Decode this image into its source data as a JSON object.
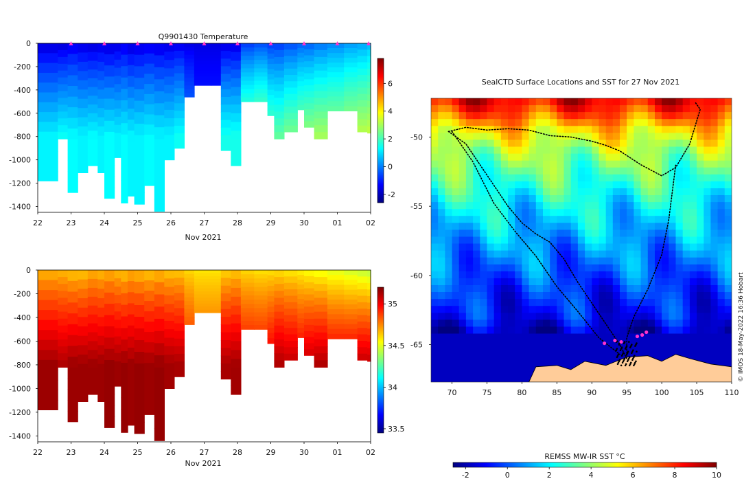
{
  "colors": {
    "jet": [
      "#00007f",
      "#0000ff",
      "#007fff",
      "#00ffff",
      "#7fff7f",
      "#ffff00",
      "#ff7f00",
      "#ff0000",
      "#7f0000"
    ],
    "land": "#ffcc99",
    "marker": "#ff33cc",
    "track": "#000000"
  },
  "chart_data": [
    {
      "id": "temperature",
      "type": "heatmap",
      "title": "Q9901430  Temperature",
      "xlabel": "Nov 2021",
      "ylabel": "",
      "x_ticks": [
        "22",
        "23",
        "24",
        "25",
        "26",
        "27",
        "28",
        "29",
        "30",
        "01",
        "02"
      ],
      "x_tick_values": [
        22,
        23,
        24,
        25,
        26,
        27,
        28,
        29,
        30,
        31,
        32
      ],
      "xlim": [
        22,
        32
      ],
      "y_ticks": [
        "0",
        "-200",
        "-400",
        "-600",
        "-800",
        "-1000",
        "-1200",
        "-1400"
      ],
      "y_tick_values": [
        0,
        -200,
        -400,
        -600,
        -800,
        -1000,
        -1200,
        -1400
      ],
      "ylim": [
        -1450,
        0
      ],
      "colorbar_ticks": [
        "6",
        "4",
        "2",
        "0",
        "-2"
      ],
      "colorbar_tick_values": [
        6,
        4,
        2,
        0,
        -2
      ],
      "clim": [
        -2.6,
        7.8
      ],
      "surface_markers_days": [
        23,
        24,
        25,
        26,
        27,
        28,
        29,
        30,
        31,
        32
      ],
      "profiles": [
        {
          "day": 22.0,
          "depth": 1180,
          "shallow": -1.8,
          "deep": 1.2
        },
        {
          "day": 22.6,
          "depth": 820,
          "shallow": -1.8,
          "deep": 1.4
        },
        {
          "day": 22.9,
          "depth": 1280,
          "shallow": -1.6,
          "deep": 1.3
        },
        {
          "day": 23.2,
          "depth": 1110,
          "shallow": -1.7,
          "deep": 1.2
        },
        {
          "day": 23.5,
          "depth": 1050,
          "shallow": -1.8,
          "deep": 1.3
        },
        {
          "day": 23.8,
          "depth": 1110,
          "shallow": -1.7,
          "deep": 1.2
        },
        {
          "day": 24.0,
          "depth": 1330,
          "shallow": -1.8,
          "deep": 1.3
        },
        {
          "day": 24.3,
          "depth": 980,
          "shallow": -1.7,
          "deep": 1.2
        },
        {
          "day": 24.5,
          "depth": 1370,
          "shallow": -1.6,
          "deep": 1.3
        },
        {
          "day": 24.7,
          "depth": 1310,
          "shallow": -1.8,
          "deep": 1.2
        },
        {
          "day": 24.9,
          "depth": 1380,
          "shallow": -1.7,
          "deep": 1.2
        },
        {
          "day": 25.2,
          "depth": 1220,
          "shallow": -1.6,
          "deep": 1.3
        },
        {
          "day": 25.5,
          "depth": 1440,
          "shallow": -1.7,
          "deep": 1.2
        },
        {
          "day": 25.8,
          "depth": 1000,
          "shallow": -1.7,
          "deep": 1.2
        },
        {
          "day": 26.1,
          "depth": 900,
          "shallow": -1.6,
          "deep": 1.4
        },
        {
          "day": 26.4,
          "depth": 460,
          "shallow": -1.6,
          "deep": 0.2
        },
        {
          "day": 26.7,
          "depth": 360,
          "shallow": -1.6,
          "deep": -0.8
        },
        {
          "day": 27.2,
          "depth": 360,
          "shallow": -1.6,
          "deep": -0.8
        },
        {
          "day": 27.5,
          "depth": 920,
          "shallow": -1.7,
          "deep": 1.5
        },
        {
          "day": 27.8,
          "depth": 1050,
          "shallow": -1.7,
          "deep": 1.5
        },
        {
          "day": 28.1,
          "depth": 500,
          "shallow": -0.8,
          "deep": 2.8
        },
        {
          "day": 28.5,
          "depth": 500,
          "shallow": -0.6,
          "deep": 3.0
        },
        {
          "day": 28.9,
          "depth": 620,
          "shallow": -0.8,
          "deep": 2.4
        },
        {
          "day": 29.1,
          "depth": 820,
          "shallow": -0.8,
          "deep": 2.3
        },
        {
          "day": 29.4,
          "depth": 760,
          "shallow": -0.6,
          "deep": 2.6
        },
        {
          "day": 29.8,
          "depth": 570,
          "shallow": -0.4,
          "deep": 2.8
        },
        {
          "day": 30.0,
          "depth": 720,
          "shallow": -0.4,
          "deep": 2.9
        },
        {
          "day": 30.3,
          "depth": 820,
          "shallow": -0.2,
          "deep": 3.0
        },
        {
          "day": 30.7,
          "depth": 580,
          "shallow": 0.0,
          "deep": 3.0
        },
        {
          "day": 31.2,
          "depth": 580,
          "shallow": 0.2,
          "deep": 3.2
        },
        {
          "day": 31.6,
          "depth": 760,
          "shallow": 0.3,
          "deep": 3.3
        },
        {
          "day": 31.9,
          "depth": 770,
          "shallow": 0.5,
          "deep": 3.4
        }
      ]
    },
    {
      "id": "salinity",
      "type": "heatmap",
      "title": "",
      "xlabel": "Nov 2021",
      "ylabel": "",
      "x_ticks": [
        "22",
        "23",
        "24",
        "25",
        "26",
        "27",
        "28",
        "29",
        "30",
        "01",
        "02"
      ],
      "x_tick_values": [
        22,
        23,
        24,
        25,
        26,
        27,
        28,
        29,
        30,
        31,
        32
      ],
      "xlim": [
        22,
        32
      ],
      "y_ticks": [
        "0",
        "-200",
        "-400",
        "-600",
        "-800",
        "-1000",
        "-1200",
        "-1400"
      ],
      "y_tick_values": [
        0,
        -200,
        -400,
        -600,
        -800,
        -1000,
        -1200,
        -1400
      ],
      "ylim": [
        -1450,
        0
      ],
      "colorbar_ticks": [
        "35",
        "34.5",
        "34",
        "33.5"
      ],
      "colorbar_tick_values": [
        35,
        34.5,
        34,
        33.5
      ],
      "clim": [
        33.45,
        35.2
      ],
      "profiles": [
        {
          "day": 22.0,
          "depth": 1180,
          "shallow": 34.65,
          "deep": 35.15
        },
        {
          "day": 22.6,
          "depth": 820,
          "shallow": 34.65,
          "deep": 35.12
        },
        {
          "day": 22.9,
          "depth": 1280,
          "shallow": 34.62,
          "deep": 35.15
        },
        {
          "day": 23.2,
          "depth": 1110,
          "shallow": 34.62,
          "deep": 35.15
        },
        {
          "day": 23.5,
          "depth": 1050,
          "shallow": 34.66,
          "deep": 35.15
        },
        {
          "day": 23.8,
          "depth": 1110,
          "shallow": 34.64,
          "deep": 35.15
        },
        {
          "day": 24.0,
          "depth": 1330,
          "shallow": 34.66,
          "deep": 35.16
        },
        {
          "day": 24.3,
          "depth": 980,
          "shallow": 34.64,
          "deep": 35.15
        },
        {
          "day": 24.5,
          "depth": 1370,
          "shallow": 34.62,
          "deep": 35.16
        },
        {
          "day": 24.7,
          "depth": 1310,
          "shallow": 34.66,
          "deep": 35.15
        },
        {
          "day": 24.9,
          "depth": 1380,
          "shallow": 34.64,
          "deep": 35.16
        },
        {
          "day": 25.2,
          "depth": 1220,
          "shallow": 34.62,
          "deep": 35.15
        },
        {
          "day": 25.5,
          "depth": 1440,
          "shallow": 34.64,
          "deep": 35.16
        },
        {
          "day": 25.8,
          "depth": 1000,
          "shallow": 34.62,
          "deep": 35.14
        },
        {
          "day": 26.1,
          "depth": 900,
          "shallow": 34.62,
          "deep": 35.13
        },
        {
          "day": 26.4,
          "depth": 460,
          "shallow": 34.6,
          "deep": 34.95
        },
        {
          "day": 26.7,
          "depth": 360,
          "shallow": 34.58,
          "deep": 34.85
        },
        {
          "day": 27.2,
          "depth": 360,
          "shallow": 34.58,
          "deep": 34.85
        },
        {
          "day": 27.5,
          "depth": 920,
          "shallow": 34.6,
          "deep": 35.13
        },
        {
          "day": 27.8,
          "depth": 1050,
          "shallow": 34.62,
          "deep": 35.14
        },
        {
          "day": 28.1,
          "depth": 500,
          "shallow": 34.6,
          "deep": 35.0
        },
        {
          "day": 28.5,
          "depth": 500,
          "shallow": 34.58,
          "deep": 35.0
        },
        {
          "day": 28.9,
          "depth": 620,
          "shallow": 34.58,
          "deep": 35.05
        },
        {
          "day": 29.1,
          "depth": 820,
          "shallow": 34.58,
          "deep": 35.12
        },
        {
          "day": 29.4,
          "depth": 760,
          "shallow": 34.56,
          "deep": 35.1
        },
        {
          "day": 29.8,
          "depth": 570,
          "shallow": 34.55,
          "deep": 35.05
        },
        {
          "day": 30.0,
          "depth": 720,
          "shallow": 34.52,
          "deep": 35.1
        },
        {
          "day": 30.3,
          "depth": 820,
          "shallow": 34.5,
          "deep": 35.12
        },
        {
          "day": 30.7,
          "depth": 580,
          "shallow": 34.48,
          "deep": 35.05
        },
        {
          "day": 31.2,
          "depth": 580,
          "shallow": 34.45,
          "deep": 35.06
        },
        {
          "day": 31.6,
          "depth": 760,
          "shallow": 34.42,
          "deep": 35.1
        },
        {
          "day": 31.9,
          "depth": 770,
          "shallow": 34.4,
          "deep": 35.1
        }
      ]
    },
    {
      "id": "sst_map",
      "type": "heatmap",
      "title": "SealCTD Surface Locations and SST for 27 Nov 2021",
      "xlabel": "",
      "ylabel": "",
      "x_ticks": [
        "70",
        "75",
        "80",
        "85",
        "90",
        "95",
        "100",
        "105",
        "110"
      ],
      "x_tick_values": [
        70,
        75,
        80,
        85,
        90,
        95,
        100,
        105,
        110
      ],
      "xlim": [
        67,
        110
      ],
      "y_ticks": [
        "-50",
        "-55",
        "-60",
        "-65"
      ],
      "y_tick_values": [
        -50,
        -55,
        -60,
        -65
      ],
      "ylim": [
        -67.7,
        -47.2
      ],
      "credit": "© IMOS 18-May-2022 16:36 Hobart",
      "colorbar_label": "REMSS MW-IR SST °C",
      "colorbar_ticks": [
        "-2",
        "0",
        "2",
        "4",
        "6",
        "8",
        "10"
      ],
      "colorbar_tick_values": [
        -2,
        0,
        2,
        4,
        6,
        8,
        10
      ],
      "clim": [
        -2.6,
        10
      ],
      "sst_bands": [
        {
          "lat": -47.5,
          "sst": 8.5
        },
        {
          "lat": -48.5,
          "sst": 7.2
        },
        {
          "lat": -49.5,
          "sst": 5.6
        },
        {
          "lat": -51,
          "sst": 4.2
        },
        {
          "lat": -53,
          "sst": 3.0
        },
        {
          "lat": -55,
          "sst": 2.0
        },
        {
          "lat": -57,
          "sst": 1.2
        },
        {
          "lat": -59,
          "sst": 0.4
        },
        {
          "lat": -61,
          "sst": -0.4
        },
        {
          "lat": -63,
          "sst": -1.0
        },
        {
          "lat": -64,
          "sst": -1.8
        }
      ],
      "ice_edge_lat": -64.3,
      "land_segments": [
        {
          "lon": 81,
          "lat": -67.7
        },
        {
          "lon": 82,
          "lat": -66.6
        },
        {
          "lon": 85,
          "lat": -66.5
        },
        {
          "lon": 87,
          "lat": -66.8
        },
        {
          "lon": 89,
          "lat": -66.2
        },
        {
          "lon": 92,
          "lat": -66.5
        },
        {
          "lon": 95,
          "lat": -65.9
        },
        {
          "lon": 98,
          "lat": -65.8
        },
        {
          "lon": 100,
          "lat": -66.2
        },
        {
          "lon": 102,
          "lat": -65.7
        },
        {
          "lon": 104,
          "lat": -66.0
        },
        {
          "lon": 107,
          "lat": -66.4
        },
        {
          "lon": 110,
          "lat": -66.6
        }
      ],
      "track_a": [
        {
          "lon": 69.5,
          "lat": -49.6
        },
        {
          "lon": 72,
          "lat": -49.3
        },
        {
          "lon": 75,
          "lat": -49.5
        },
        {
          "lon": 78,
          "lat": -49.4
        },
        {
          "lon": 81,
          "lat": -49.5
        },
        {
          "lon": 84,
          "lat": -49.9
        },
        {
          "lon": 87,
          "lat": -50.0
        },
        {
          "lon": 90,
          "lat": -50.3
        },
        {
          "lon": 92,
          "lat": -50.6
        },
        {
          "lon": 94,
          "lat": -51.0
        },
        {
          "lon": 97,
          "lat": -52.0
        },
        {
          "lon": 100,
          "lat": -52.8
        },
        {
          "lon": 102,
          "lat": -52.2
        },
        {
          "lon": 104,
          "lat": -50.5
        },
        {
          "lon": 105.5,
          "lat": -48.0
        },
        {
          "lon": 104.8,
          "lat": -47.5
        }
      ],
      "track_b": [
        {
          "lon": 69.5,
          "lat": -49.6
        },
        {
          "lon": 72,
          "lat": -50.5
        },
        {
          "lon": 74,
          "lat": -52.0
        },
        {
          "lon": 76,
          "lat": -53.5
        },
        {
          "lon": 78,
          "lat": -55.0
        },
        {
          "lon": 80,
          "lat": -56.2
        },
        {
          "lon": 82,
          "lat": -57.0
        },
        {
          "lon": 84,
          "lat": -57.6
        },
        {
          "lon": 86,
          "lat": -58.8
        },
        {
          "lon": 88,
          "lat": -60.5
        },
        {
          "lon": 90,
          "lat": -62.0
        },
        {
          "lon": 92,
          "lat": -63.5
        },
        {
          "lon": 94,
          "lat": -65.0
        },
        {
          "lon": 95,
          "lat": -66.0
        }
      ],
      "track_c": [
        {
          "lon": 95,
          "lat": -66.0
        },
        {
          "lon": 95,
          "lat": -64.5
        },
        {
          "lon": 96,
          "lat": -63.0
        },
        {
          "lon": 98,
          "lat": -61.0
        },
        {
          "lon": 100,
          "lat": -58.5
        },
        {
          "lon": 101,
          "lat": -56.0
        },
        {
          "lon": 101.5,
          "lat": -54.0
        },
        {
          "lon": 102,
          "lat": -52.0
        }
      ],
      "track_d": [
        {
          "lon": 70,
          "lat": -49.6
        },
        {
          "lon": 73,
          "lat": -51.8
        },
        {
          "lon": 76,
          "lat": -54.8
        },
        {
          "lon": 79,
          "lat": -56.8
        },
        {
          "lon": 82,
          "lat": -58.6
        },
        {
          "lon": 85,
          "lat": -60.8
        },
        {
          "lon": 88,
          "lat": -62.6
        },
        {
          "lon": 91,
          "lat": -64.5
        },
        {
          "lon": 94,
          "lat": -65.7
        }
      ],
      "highlight_points": [
        {
          "lon": 91.8,
          "lat": -64.9
        },
        {
          "lon": 93.3,
          "lat": -64.7
        },
        {
          "lon": 94.2,
          "lat": -64.8
        },
        {
          "lon": 96.5,
          "lat": -64.4
        },
        {
          "lon": 97.2,
          "lat": -64.3
        },
        {
          "lon": 97.8,
          "lat": -64.1
        }
      ]
    }
  ]
}
